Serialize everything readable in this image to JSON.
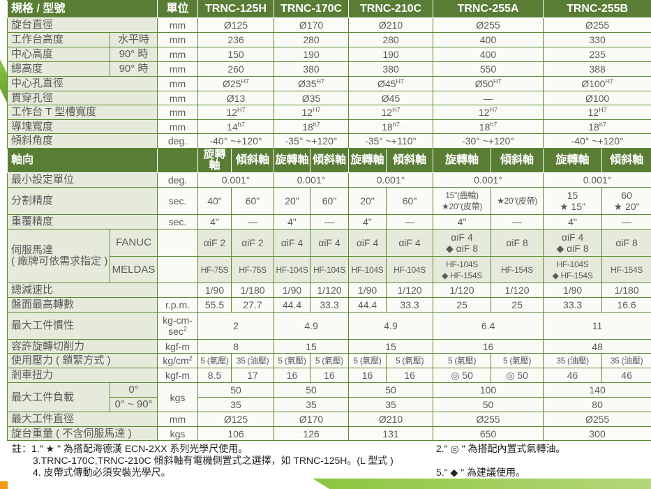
{
  "colors": {
    "header": "#5a7d36",
    "border": "#5b8a32",
    "label_bg": "#e6eadb",
    "cell_bg": "#fafaf6"
  },
  "header": {
    "label": "規格 / 型號",
    "unit": "單位",
    "models": [
      "TRNC-125H",
      "TRNC-170C",
      "TRNC-210C",
      "TRNC-255A",
      "TRNC-255B"
    ]
  },
  "rows": [
    {
      "label": "旋台直徑",
      "unit": "mm",
      "cells": [
        {
          "t": "Ø125",
          "s": 2
        },
        {
          "t": "Ø170",
          "s": 2
        },
        {
          "t": "Ø210",
          "s": 2
        },
        {
          "t": "Ø255",
          "s": 2
        },
        {
          "t": "Ø255",
          "s": 2
        }
      ]
    },
    {
      "label": "工作台高度",
      "sub": "水平時",
      "unit": "mm",
      "cells": [
        {
          "t": "236",
          "s": 2
        },
        {
          "t": "280",
          "s": 2
        },
        {
          "t": "280",
          "s": 2
        },
        {
          "t": "400",
          "s": 2
        },
        {
          "t": "330",
          "s": 2
        }
      ]
    },
    {
      "label": "中心高度",
      "sub": "90° 時",
      "unit": "mm",
      "cells": [
        {
          "t": "150",
          "s": 2
        },
        {
          "t": "190",
          "s": 2
        },
        {
          "t": "190",
          "s": 2
        },
        {
          "t": "400",
          "s": 2
        },
        {
          "t": "235",
          "s": 2
        }
      ]
    },
    {
      "label": "總高度",
      "sub": "90° 時",
      "unit": "mm",
      "cells": [
        {
          "t": "260",
          "s": 2
        },
        {
          "t": "380",
          "s": 2
        },
        {
          "t": "380",
          "s": 2
        },
        {
          "t": "550",
          "s": 2
        },
        {
          "t": "388",
          "s": 2
        }
      ]
    },
    {
      "label": "中心孔直徑",
      "unit": "mm",
      "cells": [
        {
          "t": "Ø25",
          "sup": "H7",
          "s": 2
        },
        {
          "t": "Ø35",
          "sup": "H7",
          "s": 2
        },
        {
          "t": "Ø45",
          "sup": "H7",
          "s": 2
        },
        {
          "t": "Ø50",
          "sup": "H7",
          "s": 2
        },
        {
          "t": "Ø100",
          "sup": "H7",
          "s": 2
        }
      ]
    },
    {
      "label": "貫穿孔徑",
      "unit": "mm",
      "cells": [
        {
          "t": "Ø13",
          "s": 2
        },
        {
          "t": "Ø35",
          "s": 2
        },
        {
          "t": "Ø45",
          "s": 2
        },
        {
          "t": "—",
          "s": 2
        },
        {
          "t": "Ø100",
          "s": 2
        }
      ]
    },
    {
      "label": "工作台 T 型槽寬度",
      "unit": "mm",
      "cells": [
        {
          "t": "12",
          "sup": "H7",
          "s": 2
        },
        {
          "t": "12",
          "sup": "H7",
          "s": 2
        },
        {
          "t": "12",
          "sup": "H7",
          "s": 2
        },
        {
          "t": "12",
          "sup": "H7",
          "s": 2
        },
        {
          "t": "12",
          "sup": "H7",
          "s": 2
        }
      ]
    },
    {
      "label": "導塊寬度",
      "unit": "mm",
      "cells": [
        {
          "t": "14",
          "sup": "h7",
          "s": 2
        },
        {
          "t": "18",
          "sup": "h7",
          "s": 2
        },
        {
          "t": "18",
          "sup": "h7",
          "s": 2
        },
        {
          "t": "18",
          "sup": "h7",
          "s": 2
        },
        {
          "t": "18",
          "sup": "h7",
          "s": 2
        }
      ]
    },
    {
      "label": "傾斜角度",
      "unit": "deg.",
      "cells": [
        {
          "t": "-40° ~+120°",
          "s": 2
        },
        {
          "t": "-35° ~+120°",
          "s": 2
        },
        {
          "t": "-35° ~+110°",
          "s": 2
        },
        {
          "t": "-30° ~+120°",
          "s": 2
        },
        {
          "t": "-40° ~+120°",
          "s": 2
        }
      ]
    },
    {
      "head": true,
      "label": "軸向",
      "unit": "",
      "cells": [
        {
          "t": "旋轉軸"
        },
        {
          "t": "傾斜軸"
        },
        {
          "t": "旋轉軸"
        },
        {
          "t": "傾斜軸"
        },
        {
          "t": "旋轉軸"
        },
        {
          "t": "傾斜軸"
        },
        {
          "t": "旋轉軸"
        },
        {
          "t": "傾斜軸"
        },
        {
          "t": "旋轉軸"
        },
        {
          "t": "傾斜軸"
        }
      ]
    },
    {
      "label": "最小設定單位",
      "unit": "deg.",
      "cells": [
        {
          "t": "0.001°",
          "s": 2
        },
        {
          "t": "0.001°",
          "s": 2
        },
        {
          "t": "0.001°",
          "s": 2
        },
        {
          "t": "0.001°",
          "s": 2
        },
        {
          "t": "0.001°",
          "s": 2
        }
      ]
    },
    {
      "label": "分割精度",
      "unit": "sec.",
      "cells": [
        {
          "t": "40\""
        },
        {
          "t": "60\""
        },
        {
          "t": "20\""
        },
        {
          "t": "60\""
        },
        {
          "t": "20\""
        },
        {
          "t": "60\""
        },
        {
          "t": "15\"(齒輪)\n★20\"(皮帶)",
          "sm": 1
        },
        {
          "t": "★20\"(皮帶)",
          "sm": 1
        },
        {
          "t": "15\n★ 15\""
        },
        {
          "t": "60\n★ 20\""
        }
      ]
    },
    {
      "label": "重覆精度",
      "unit": "sec.",
      "cells": [
        {
          "t": "4\""
        },
        {
          "t": "—"
        },
        {
          "t": "4\""
        },
        {
          "t": "—"
        },
        {
          "t": "4\""
        },
        {
          "t": "—"
        },
        {
          "t": "4\""
        },
        {
          "t": "—"
        },
        {
          "t": "4\""
        },
        {
          "t": "—"
        }
      ]
    },
    {
      "label": "伺服馬達\n( 廠牌可依需求指定 )",
      "rs": 2,
      "sub": "FANUC",
      "unit": "",
      "gray": true,
      "cells": [
        {
          "t": "αiF 2"
        },
        {
          "t": "αiF 2"
        },
        {
          "t": "αiF 4"
        },
        {
          "t": "αiF 4"
        },
        {
          "t": "αiF 4"
        },
        {
          "t": "αiF 4"
        },
        {
          "t": "αiF 4\n◆ αiF 8"
        },
        {
          "t": "αiF 8"
        },
        {
          "t": "αiF 4\n◆ αiF 8"
        },
        {
          "t": "αiF 8"
        }
      ]
    },
    {
      "sub": "MELDAS",
      "unit": "",
      "gray": true,
      "cells": [
        {
          "t": "HF-75S",
          "sm": 1
        },
        {
          "t": "HF-75S",
          "sm": 1
        },
        {
          "t": "HF-104S",
          "sm": 1
        },
        {
          "t": "HF-104S",
          "sm": 1
        },
        {
          "t": "HF-104S",
          "sm": 1
        },
        {
          "t": "HF-104S",
          "sm": 1
        },
        {
          "t": "HF-104S\n◆ HF-154S",
          "sm": 1
        },
        {
          "t": "HF-154S",
          "sm": 1
        },
        {
          "t": "HF-104S\n◆ HF-154S",
          "sm": 1
        },
        {
          "t": "HF-154S",
          "sm": 1
        }
      ]
    },
    {
      "label": "總減速比",
      "unit": "",
      "cells": [
        {
          "t": "1/90"
        },
        {
          "t": "1/180"
        },
        {
          "t": "1/90"
        },
        {
          "t": "1/120"
        },
        {
          "t": "1/90"
        },
        {
          "t": "1/120"
        },
        {
          "t": "1/120"
        },
        {
          "t": "1/120"
        },
        {
          "t": "1/90"
        },
        {
          "t": "1/180"
        }
      ]
    },
    {
      "label": "盤面最高轉數",
      "unit": "r.p.m.",
      "cells": [
        {
          "t": "55.5"
        },
        {
          "t": "27.7"
        },
        {
          "t": "44.4"
        },
        {
          "t": "33.3"
        },
        {
          "t": "44.4"
        },
        {
          "t": "33.3"
        },
        {
          "t": "25"
        },
        {
          "t": "25"
        },
        {
          "t": "33.3"
        },
        {
          "t": "16.6"
        }
      ]
    },
    {
      "label": "最大工件慣性",
      "unit": "kg-cm-\nsec",
      "unit_sup": "2",
      "cells": [
        {
          "t": "2",
          "s": 2
        },
        {
          "t": "4.9",
          "s": 2
        },
        {
          "t": "4.9",
          "s": 2
        },
        {
          "t": "6.4",
          "s": 2
        },
        {
          "t": "11",
          "s": 2
        }
      ]
    },
    {
      "label": "容許旋轉切削力",
      "unit": "kgf-m",
      "cells": [
        {
          "t": "8",
          "s": 2
        },
        {
          "t": "15",
          "s": 2
        },
        {
          "t": "15",
          "s": 2
        },
        {
          "t": "16",
          "s": 2
        },
        {
          "t": "48",
          "s": 2
        }
      ]
    },
    {
      "label": "使用壓力 ( 鎖緊方式 )",
      "unit": "kg/cm",
      "unit_sup": "2",
      "cells": [
        {
          "t": "5 (氣壓)",
          "sm": 1
        },
        {
          "t": "35 (油壓)",
          "sm": 1
        },
        {
          "t": "5 (氣壓)",
          "sm": 1
        },
        {
          "t": "5 (氣壓)",
          "sm": 1
        },
        {
          "t": "5 (氣壓)",
          "sm": 1
        },
        {
          "t": "5 (氣壓)",
          "sm": 1
        },
        {
          "t": "5 (氣壓)",
          "sm": 1
        },
        {
          "t": "5 (氣壓)",
          "sm": 1
        },
        {
          "t": "35 (油壓)",
          "sm": 1
        },
        {
          "t": "35 (油壓)",
          "sm": 1
        }
      ]
    },
    {
      "label": "剎車扭力",
      "unit": "kgf-m",
      "cells": [
        {
          "t": "8.5"
        },
        {
          "t": "17"
        },
        {
          "t": "16"
        },
        {
          "t": "16"
        },
        {
          "t": "16"
        },
        {
          "t": "16"
        },
        {
          "t": "◎ 50"
        },
        {
          "t": "◎ 50"
        },
        {
          "t": "46"
        },
        {
          "t": "46"
        }
      ]
    },
    {
      "label": "最大工件負載",
      "rs": 2,
      "sub": "0°",
      "unit": "kgs",
      "urs": 2,
      "cells": [
        {
          "t": "50",
          "s": 2
        },
        {
          "t": "50",
          "s": 2
        },
        {
          "t": "50",
          "s": 2
        },
        {
          "t": "100",
          "s": 2
        },
        {
          "t": "140",
          "s": 2
        }
      ]
    },
    {
      "sub": "0° ~ 90°",
      "nounit": true,
      "cells": [
        {
          "t": "35",
          "s": 2
        },
        {
          "t": "35",
          "s": 2
        },
        {
          "t": "35",
          "s": 2
        },
        {
          "t": "50",
          "s": 2
        },
        {
          "t": "80",
          "s": 2
        }
      ]
    },
    {
      "label": "最大工件直徑",
      "unit": "mm",
      "cells": [
        {
          "t": "Ø125",
          "s": 2
        },
        {
          "t": "Ø170",
          "s": 2
        },
        {
          "t": "Ø210",
          "s": 2
        },
        {
          "t": "Ø255",
          "s": 2
        },
        {
          "t": "Ø255",
          "s": 2
        }
      ]
    },
    {
      "label": "旋台重量 ( 不含伺服馬達 )",
      "unit": "kgs",
      "cells": [
        {
          "t": "106",
          "s": 2
        },
        {
          "t": "126",
          "s": 2
        },
        {
          "t": "131",
          "s": 2
        },
        {
          "t": "650",
          "s": 2
        },
        {
          "t": "300",
          "s": 2
        }
      ]
    }
  ],
  "notes": {
    "n1": "註：1.\" ★ \" 為搭配海德漢 ECN-2XX 系列光學尺使用。",
    "n2": "2.\" ◎ \" 為搭配內置式氣轉油。",
    "n3": "3.TRNC-170C,TRNC-210C 傾斜軸有電機側置式之選擇，如 TRNC-125H。(L 型式 )",
    "n4": "4. 皮帶式傳動必須安裝光學尺。",
    "n5": "5.\" ◆ \" 為建議使用。"
  }
}
